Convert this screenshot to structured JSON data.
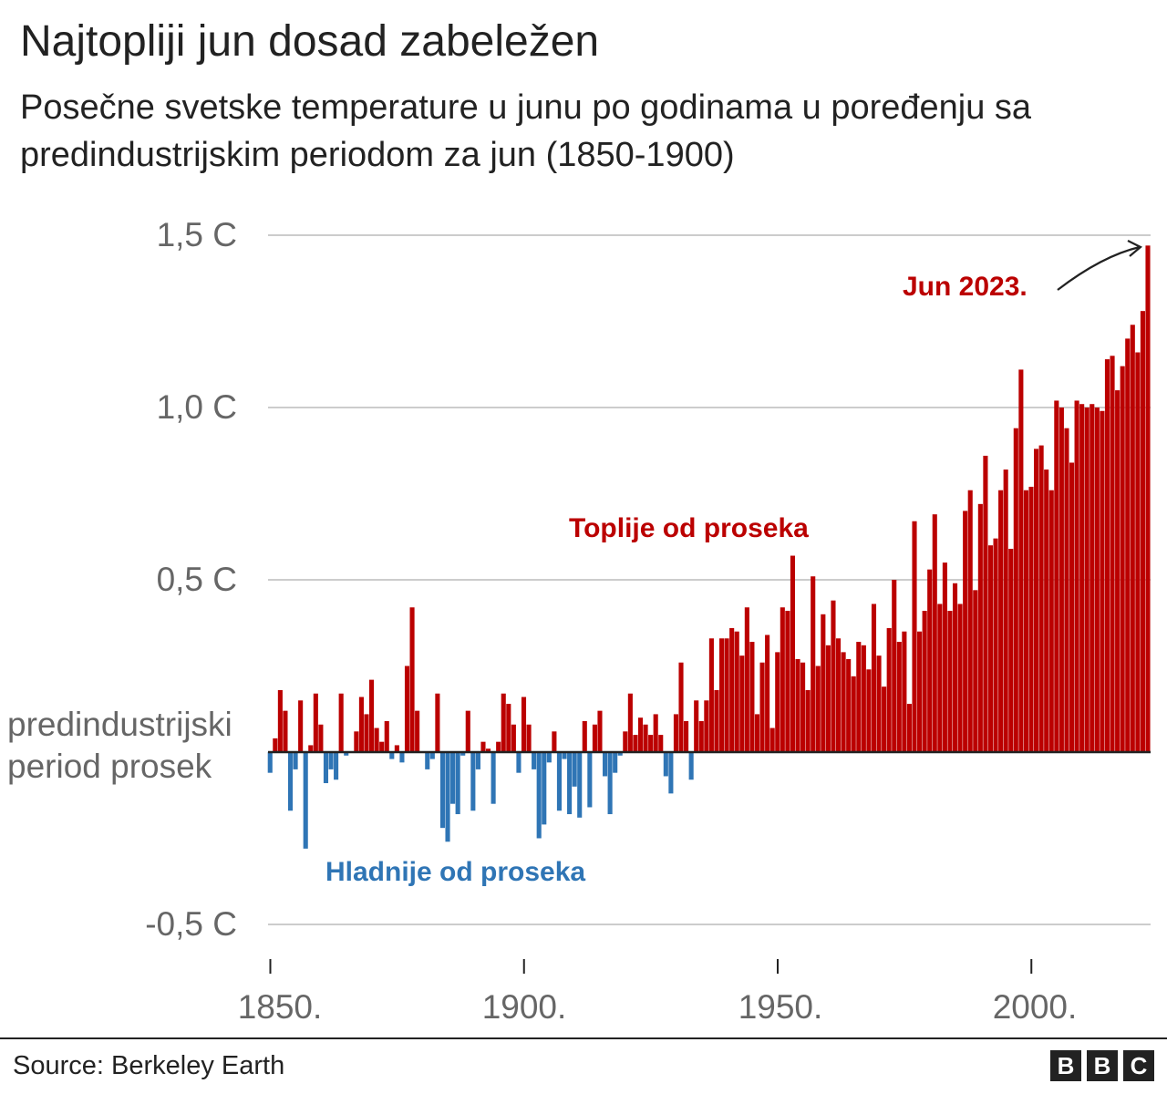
{
  "title": "Najtopliji jun dosad zabeležen",
  "subtitle": "Posečne svetske temperature u junu po godinama u poređenju sa predindustrijskim periodom za jun (1850-1900)",
  "source": "Source: Berkeley Earth",
  "logo": [
    "B",
    "B",
    "C"
  ],
  "colors": {
    "warm": "#bb0000",
    "cool": "#2f75b5",
    "grid": "#cccccc",
    "axis": "#222222"
  },
  "chart_data": {
    "type": "bar",
    "title": "Najtopliji jun dosad zabeležen",
    "xlabel": "",
    "ylabel": "",
    "ylim": [
      -0.5,
      1.5
    ],
    "grid": true,
    "y_ticks": [
      {
        "value": 1.5,
        "label": "1,5 C"
      },
      {
        "value": 1.0,
        "label": "1,0 C"
      },
      {
        "value": 0.5,
        "label": "0,5 C"
      },
      {
        "value": 0,
        "label": "predindustrijski period prosek"
      },
      {
        "value": -0.5,
        "label": "-0,5 C"
      }
    ],
    "baseline_label_lines": [
      "predindustrijski",
      "period prosek"
    ],
    "x_ticks": [
      {
        "value": 1850,
        "label": "1850."
      },
      {
        "value": 1900,
        "label": "1900."
      },
      {
        "value": 1950,
        "label": "1950."
      },
      {
        "value": 2000,
        "label": "2000."
      }
    ],
    "annotations": {
      "record": "Jun 2023.",
      "warmer": "Toplije od proseka",
      "cooler": "Hladnije od proseka"
    },
    "x_start": 1850,
    "values": [
      -0.06,
      0.04,
      0.18,
      0.12,
      -0.17,
      -0.05,
      0.15,
      -0.28,
      0.02,
      0.17,
      0.08,
      -0.09,
      -0.05,
      -0.08,
      0.17,
      -0.01,
      0.0,
      0.06,
      0.16,
      0.11,
      0.21,
      0.07,
      0.03,
      0.09,
      -0.02,
      0.02,
      -0.03,
      0.25,
      0.42,
      0.12,
      0.0,
      -0.05,
      -0.02,
      0.17,
      -0.22,
      -0.26,
      -0.15,
      -0.18,
      -0.01,
      0.12,
      -0.17,
      -0.05,
      0.03,
      0.01,
      -0.15,
      0.03,
      0.17,
      0.14,
      0.08,
      -0.06,
      0.16,
      0.08,
      -0.05,
      -0.25,
      -0.21,
      -0.03,
      0.06,
      -0.17,
      -0.02,
      -0.18,
      -0.1,
      -0.19,
      0.09,
      -0.16,
      0.08,
      0.12,
      -0.07,
      -0.18,
      -0.06,
      -0.01,
      0.06,
      0.17,
      0.05,
      0.1,
      0.08,
      0.05,
      0.11,
      0.05,
      -0.07,
      -0.12,
      0.11,
      0.26,
      0.09,
      -0.08,
      0.15,
      0.09,
      0.15,
      0.33,
      0.18,
      0.33,
      0.33,
      0.36,
      0.35,
      0.28,
      0.42,
      0.32,
      0.11,
      0.26,
      0.34,
      0.07,
      0.29,
      0.42,
      0.41,
      0.57,
      0.27,
      0.26,
      0.18,
      0.51,
      0.25,
      0.4,
      0.31,
      0.44,
      0.33,
      0.29,
      0.27,
      0.22,
      0.32,
      0.31,
      0.24,
      0.43,
      0.28,
      0.19,
      0.36,
      0.5,
      0.32,
      0.35,
      0.14,
      0.67,
      0.35,
      0.41,
      0.53,
      0.69,
      0.43,
      0.55,
      0.41,
      0.49,
      0.43,
      0.7,
      0.76,
      0.47,
      0.72,
      0.86,
      0.6,
      0.62,
      0.76,
      0.82,
      0.59,
      0.94,
      1.11,
      0.76,
      0.77,
      0.88,
      0.89,
      0.82,
      0.76,
      1.02,
      1.0,
      0.94,
      0.84,
      1.02,
      1.01,
      1.0,
      1.01,
      1.0,
      0.99,
      1.14,
      1.15,
      1.05,
      1.12,
      1.2,
      1.24,
      1.16,
      1.28,
      1.47
    ]
  }
}
